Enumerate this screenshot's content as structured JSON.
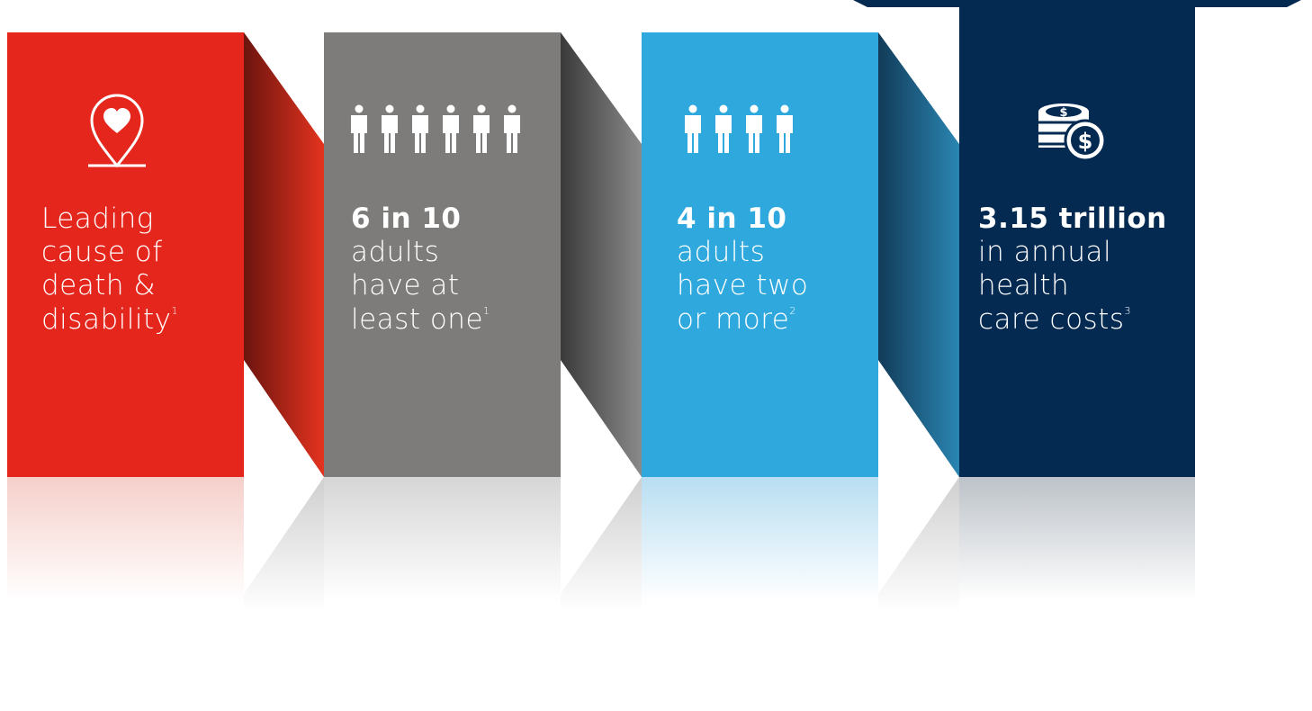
{
  "panels": [
    {
      "id": "death-disability",
      "color": "#e5261d",
      "icon": "heart-location-pin-icon",
      "lead": "",
      "lines": [
        "Leading",
        "cause of",
        "death &",
        "disability"
      ],
      "footnote": "1"
    },
    {
      "id": "six-in-ten",
      "color": "#7d7c7a",
      "icon": "six-people-icon",
      "lead": "6 in 10",
      "lines": [
        "adults",
        "have at",
        "least one"
      ],
      "footnote": "1"
    },
    {
      "id": "four-in-ten",
      "color": "#2fa8de",
      "icon": "four-people-icon",
      "lead": "4 in 10",
      "lines": [
        "adults",
        "have two",
        "or more"
      ],
      "footnote": "2"
    },
    {
      "id": "health-costs",
      "color": "#052a52",
      "icon": "stacked-coins-dollar-icon",
      "lead": "3.15 trillion",
      "lines": [
        "in annual",
        "health",
        "care costs"
      ],
      "footnote": "3"
    }
  ]
}
